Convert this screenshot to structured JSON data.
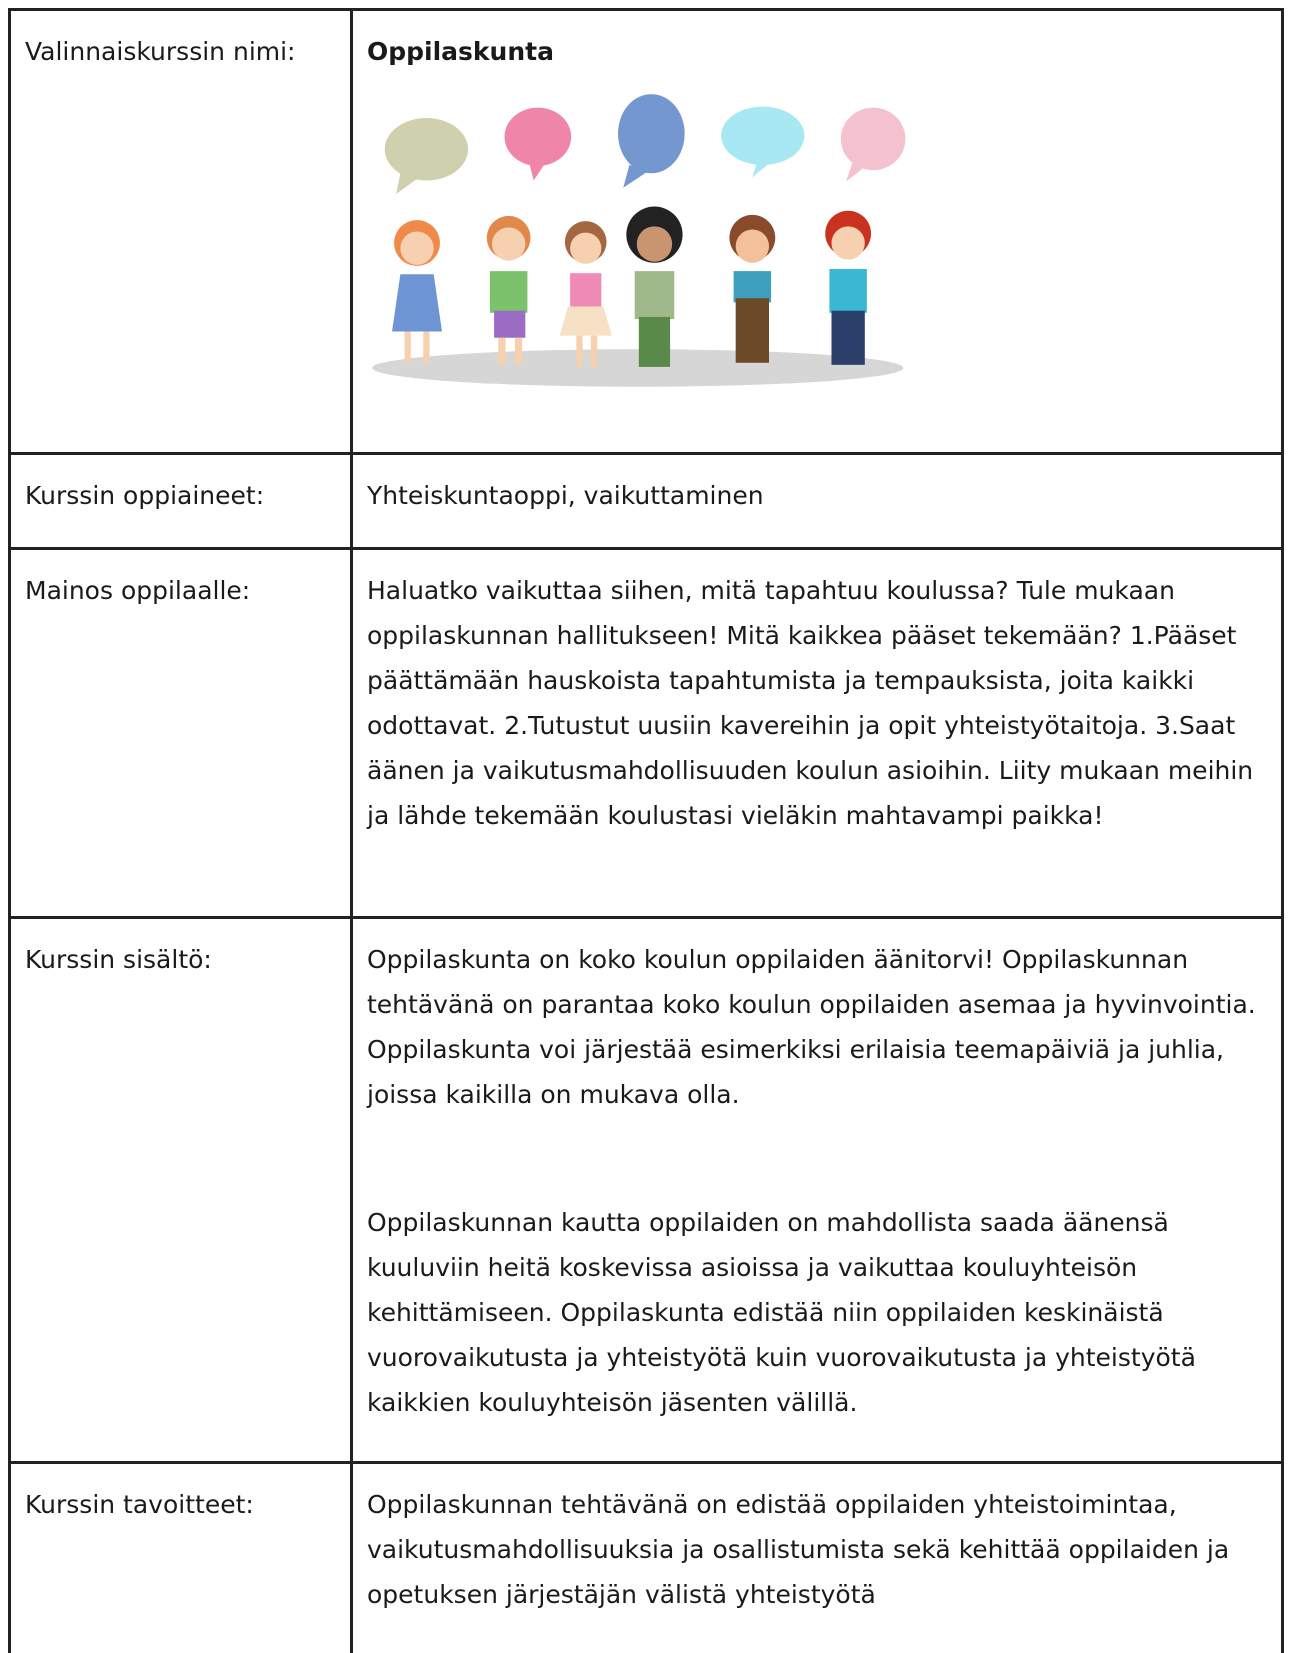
{
  "table": {
    "rows": [
      {
        "label": "Valinnaiskurssin nimi:",
        "title": "Oppilaskunta"
      },
      {
        "label": "Kurssin oppiaineet:",
        "paragraphs": [
          "Yhteiskuntaoppi, vaikuttaminen"
        ]
      },
      {
        "label": "Mainos oppilaalle:",
        "paragraphs": [
          "Haluatko vaikuttaa siihen, mitä tapahtuu koulussa? Tule mukaan oppilaskunnan hallitukseen! Mitä kaikkea pääset tekemään? 1.Pääset päättämään hauskoista tapahtumista ja tempauksista, joita kaikki odottavat. 2.Tutustut uusiin kavereihin ja opit yhteistyötaitoja. 3.Saat äänen ja vaikutusmahdollisuuden koulun asioihin. Liity mukaan meihin ja lähde tekemään koulustasi vieläkin mahtavampi paikka!"
        ]
      },
      {
        "label": "Kurssin sisältö:",
        "paragraphs": [
          "Oppilaskunta on koko koulun oppilaiden äänitorvi! Oppilaskunnan tehtävänä on parantaa koko koulun oppilaiden asemaa ja hyvinvointia. Oppilaskunta voi järjestää esimerkiksi erilaisia teemapäiviä ja juhlia, joissa kaikilla on mukava olla.",
          "Oppilaskunnan kautta oppilaiden on mahdollista saada äänensä kuuluviin heitä koskevissa asioissa ja vaikuttaa kouluyhteisön kehittämiseen. Oppilaskunta edistää niin oppilaiden keskinäistä vuorovaikutusta ja yhteistyötä kuin vuorovaikutusta ja yhteistyötä kaikkien kouluyhteisön jäsenten välillä."
        ]
      },
      {
        "label": "Kurssin tavoitteet:",
        "paragraphs": [
          "Oppilaskunnan tehtävänä on edistää oppilaiden yhteistoimintaa, vaikutusmahdollisuuksia ja osallistumista sekä kehittää oppilaiden ja opetuksen järjestäjän välistä yhteistyötä"
        ]
      }
    ]
  }
}
